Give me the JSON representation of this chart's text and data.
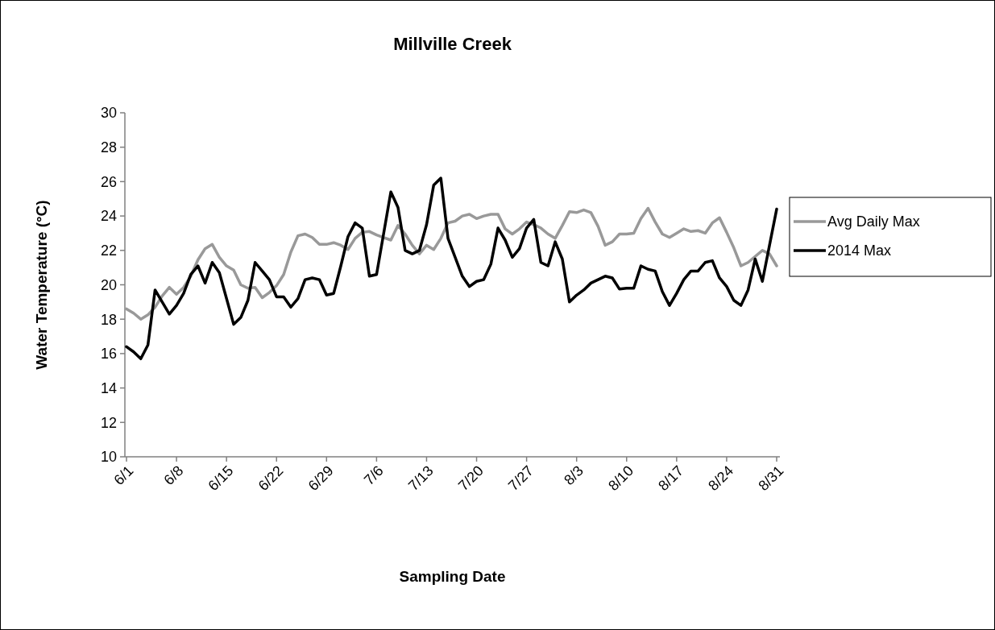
{
  "chart_data": {
    "type": "line",
    "title": "Millville Creek",
    "xlabel": "Sampling Date",
    "ylabel": "Water Temperature (°C)",
    "categories": [
      "6/1",
      null,
      null,
      null,
      null,
      null,
      null,
      "6/8",
      null,
      null,
      null,
      null,
      null,
      null,
      "6/15",
      null,
      null,
      null,
      null,
      null,
      null,
      "6/22",
      null,
      null,
      null,
      null,
      null,
      null,
      "6/29",
      null,
      null,
      null,
      null,
      null,
      null,
      "7/6",
      null,
      null,
      null,
      null,
      null,
      null,
      "7/13",
      null,
      null,
      null,
      null,
      null,
      null,
      "7/20",
      null,
      null,
      null,
      null,
      null,
      null,
      "7/27",
      null,
      null,
      null,
      null,
      null,
      null,
      "8/3",
      null,
      null,
      null,
      null,
      null,
      null,
      "8/10",
      null,
      null,
      null,
      null,
      null,
      null,
      "8/17",
      null,
      null,
      null,
      null,
      null,
      null,
      "8/24",
      null,
      null,
      null,
      null,
      null,
      null,
      "8/31"
    ],
    "series": [
      {
        "name": "Avg Daily Max",
        "color": "#999999",
        "values": [
          18.6,
          18.35,
          18.0,
          18.25,
          18.7,
          19.35,
          19.85,
          19.45,
          19.85,
          20.5,
          21.45,
          22.1,
          22.35,
          21.6,
          21.1,
          20.85,
          20.0,
          19.8,
          19.85,
          19.25,
          19.55,
          19.95,
          20.6,
          21.9,
          22.85,
          22.95,
          22.75,
          22.35,
          22.35,
          22.45,
          22.3,
          22.05,
          22.7,
          23.05,
          23.1,
          22.9,
          22.75,
          22.6,
          23.45,
          22.95,
          22.3,
          21.8,
          22.3,
          22.05,
          22.7,
          23.6,
          23.7,
          24.0,
          24.1,
          23.85,
          24.0,
          24.1,
          24.1,
          23.25,
          22.95,
          23.25,
          23.65,
          23.5,
          23.3,
          22.95,
          22.7,
          23.45,
          24.25,
          24.2,
          24.35,
          24.2,
          23.4,
          22.3,
          22.5,
          22.95,
          22.95,
          23.0,
          23.85,
          24.45,
          23.65,
          22.95,
          22.75,
          23.0,
          23.25,
          23.1,
          23.15,
          23.0,
          23.6,
          23.9,
          23.05,
          22.15,
          21.1,
          21.3,
          21.65,
          22.0,
          21.8,
          21.1
        ]
      },
      {
        "name": "2014 Max",
        "color": "#000000",
        "values": [
          16.4,
          16.1,
          15.7,
          16.5,
          19.7,
          19.0,
          18.3,
          18.8,
          19.5,
          20.6,
          21.1,
          20.1,
          21.3,
          20.7,
          19.2,
          17.7,
          18.1,
          19.1,
          21.3,
          20.8,
          20.3,
          19.3,
          19.3,
          18.7,
          19.2,
          20.3,
          20.4,
          20.3,
          19.4,
          19.5,
          21.1,
          22.8,
          23.6,
          23.3,
          20.5,
          20.6,
          23.0,
          25.4,
          24.5,
          22.0,
          21.8,
          22.0,
          23.5,
          25.8,
          26.2,
          22.7,
          21.6,
          20.5,
          19.9,
          20.2,
          20.3,
          21.2,
          23.3,
          22.6,
          21.6,
          22.1,
          23.3,
          23.8,
          21.3,
          21.1,
          22.5,
          21.5,
          19.0,
          19.4,
          19.7,
          20.1,
          20.3,
          20.5,
          20.4,
          19.75,
          19.8,
          19.8,
          21.1,
          20.9,
          20.8,
          19.6,
          18.8,
          19.5,
          20.3,
          20.8,
          20.8,
          21.3,
          21.4,
          20.4,
          19.9,
          19.1,
          18.8,
          19.7,
          21.5,
          20.2,
          22.3,
          24.4
        ]
      }
    ],
    "ylim": [
      10,
      30
    ],
    "yticks": [
      10,
      12,
      14,
      16,
      18,
      20,
      22,
      24,
      26,
      28,
      30
    ],
    "grid": false,
    "legend": "right",
    "marker": "none",
    "line_style": "solid"
  }
}
